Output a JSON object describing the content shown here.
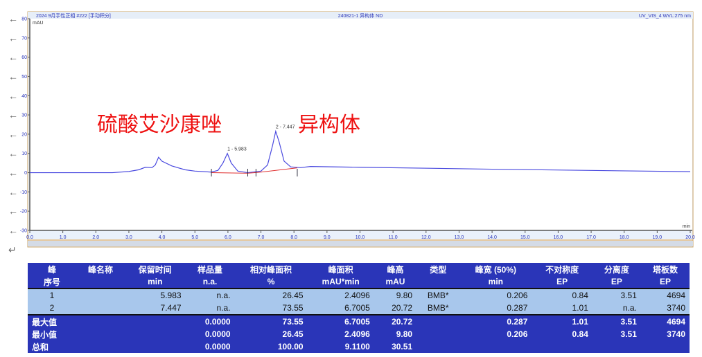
{
  "chart_data": {
    "type": "line",
    "header_left": "2024 9月手性正相 #222 [手动积分]",
    "header_center": "240821-1 异构体 ND",
    "header_right": "UV_VIS_4 WVL:275 nm",
    "ylabel": "mAU",
    "xlabel": "min",
    "xlim": [
      0,
      20
    ],
    "ylim": [
      -30,
      80
    ],
    "xticks": [
      "0.0",
      "1.0",
      "2.0",
      "3.0",
      "4.0",
      "5.0",
      "6.0",
      "7.0",
      "8.0",
      "9.0",
      "10.0",
      "11.0",
      "12.0",
      "13.0",
      "14.0",
      "15.0",
      "16.0",
      "17.0",
      "18.0",
      "19.0",
      "20.0"
    ],
    "yticks": [
      "80",
      "70",
      "60",
      "50",
      "40",
      "30",
      "20",
      "10",
      "0",
      "-10",
      "-20",
      "-30"
    ],
    "series": [
      {
        "color": "#4a4adf",
        "x": [
          0,
          2.5,
          3.0,
          3.3,
          3.5,
          3.7,
          3.8,
          3.9,
          4.0,
          4.3,
          4.7,
          5.0,
          5.5,
          5.7,
          5.85,
          5.983,
          6.1,
          6.3,
          6.6,
          7.0,
          7.2,
          7.35,
          7.447,
          7.55,
          7.7,
          7.9,
          8.2,
          8.5,
          10,
          14,
          20
        ],
        "y": [
          0,
          0,
          0.6,
          1.5,
          2.8,
          2.6,
          4,
          8,
          6,
          3.5,
          1.5,
          0.8,
          0.3,
          1.2,
          5,
          10,
          5,
          0.8,
          0,
          0.8,
          4,
          14,
          21.5,
          16,
          6,
          3,
          2.6,
          3.2,
          2.8,
          1.8,
          0.5
        ]
      }
    ],
    "peak_labels": [
      {
        "x": 5.983,
        "y": 10,
        "text": "1 - 5.983"
      },
      {
        "x": 7.447,
        "y": 21.5,
        "text": "2 - 7.447"
      }
    ],
    "annotations": [
      "硫酸艾沙康唑",
      "异构体"
    ],
    "baseline_color": "#e03030"
  },
  "table": {
    "header1": [
      "峰",
      "峰名称",
      "保留时间",
      "样品量",
      "相对峰面积",
      "峰面积",
      "峰高",
      "类型",
      "峰宽 (50%)",
      "不对称度",
      "分离度",
      "塔板数"
    ],
    "header2": [
      "序号",
      "",
      "min",
      "n.a.",
      "%",
      "mAU*min",
      "mAU",
      "",
      "min",
      "EP",
      "EP",
      "EP"
    ],
    "rows": [
      [
        "1",
        "",
        "5.983",
        "n.a.",
        "26.45",
        "2.4096",
        "9.80",
        "BMB*",
        "0.206",
        "0.84",
        "3.51",
        "4694"
      ],
      [
        "2",
        "",
        "7.447",
        "n.a.",
        "73.55",
        "6.7005",
        "20.72",
        "BMB*",
        "0.287",
        "1.01",
        "n.a.",
        "3740"
      ]
    ],
    "summary": [
      [
        "最大值",
        "",
        "",
        "0.0000",
        "73.55",
        "6.7005",
        "20.72",
        "",
        "0.287",
        "1.01",
        "3.51",
        "4694"
      ],
      [
        "最小值",
        "",
        "",
        "0.0000",
        "26.45",
        "2.4096",
        "9.80",
        "",
        "0.206",
        "0.84",
        "3.51",
        "3740"
      ],
      [
        "总和",
        "",
        "",
        "0.0000",
        "100.00",
        "9.1100",
        "30.51",
        "",
        "",
        "",
        "",
        ""
      ]
    ]
  }
}
